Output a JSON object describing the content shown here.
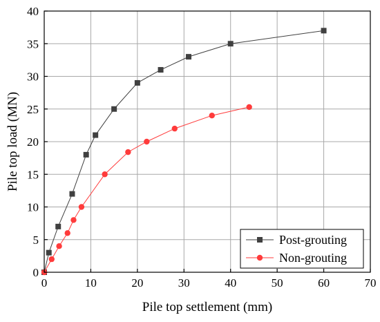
{
  "chart_data": {
    "type": "line",
    "xlabel": "Pile top settlement (mm)",
    "ylabel": "Pile top load (MN)",
    "xlim": [
      0,
      70
    ],
    "ylim": [
      0,
      40
    ],
    "xticks": [
      0,
      10,
      20,
      30,
      40,
      50,
      60,
      70
    ],
    "yticks": [
      0,
      5,
      10,
      15,
      20,
      25,
      30,
      35,
      40
    ],
    "grid": true,
    "legend_position": "bottom-right",
    "series": [
      {
        "name": "Post-grouting",
        "color": "#404040",
        "marker": "square",
        "x": [
          0,
          1,
          3,
          6,
          9,
          11,
          15,
          20,
          25,
          31,
          40,
          60
        ],
        "y": [
          0,
          3,
          7,
          12,
          18,
          21,
          25,
          29,
          31,
          33,
          35,
          37
        ]
      },
      {
        "name": "Non-grouting",
        "color": "#ff3b3b",
        "marker": "circle",
        "x": [
          0,
          1.6,
          3.2,
          5,
          6.3,
          8,
          13,
          18,
          22,
          28,
          36,
          44
        ],
        "y": [
          0,
          2,
          4,
          6,
          8,
          10,
          15,
          18.4,
          20,
          22,
          24,
          25.3
        ]
      }
    ]
  }
}
